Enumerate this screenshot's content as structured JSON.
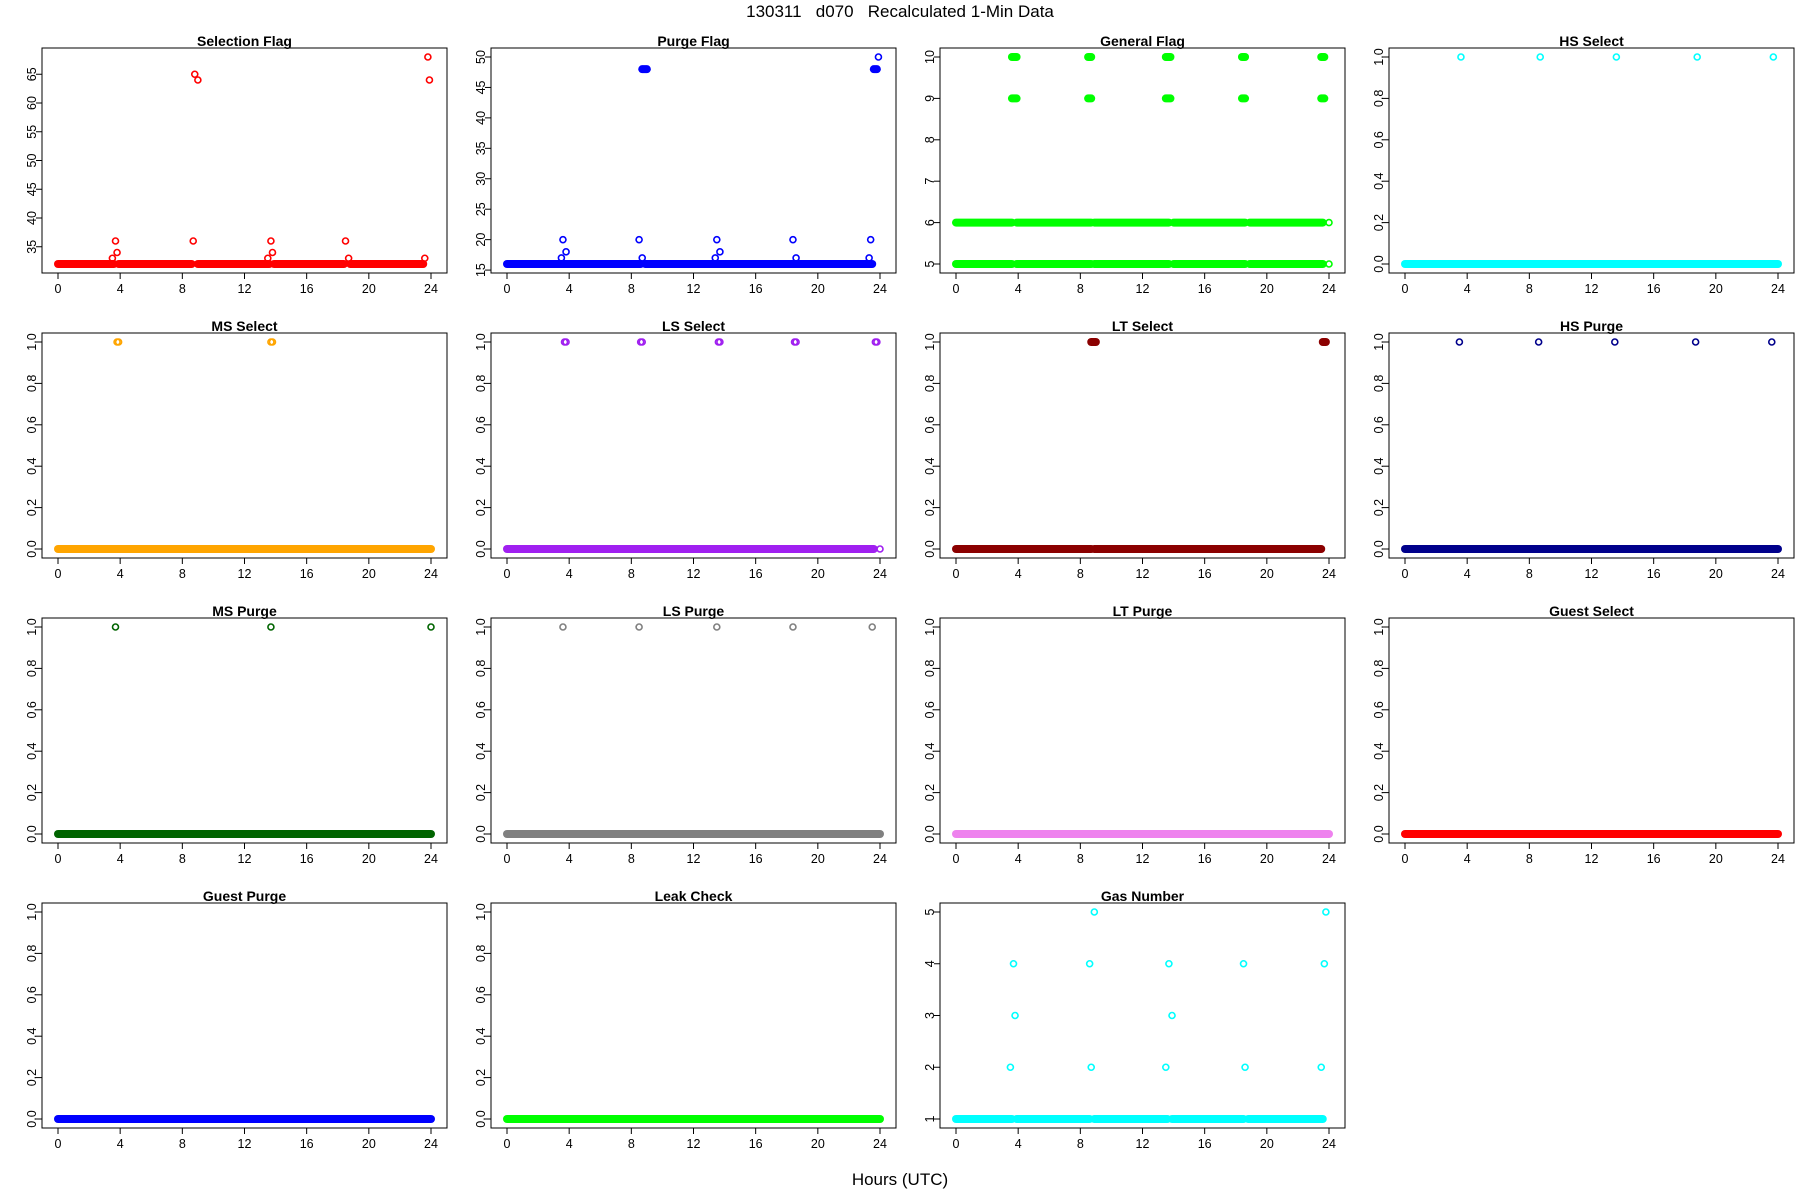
{
  "title": "130311   d070   Recalculated 1-Min Data",
  "xlabel": "Hours (UTC)",
  "chart_data": [
    {
      "type": "scatter",
      "title": "Selection Flag",
      "color": "#ff0000",
      "xlim": [
        0,
        24
      ],
      "ylim": [
        32,
        68
      ],
      "xticks": [
        0,
        4,
        8,
        12,
        16,
        20,
        24
      ],
      "yticks": [
        35,
        40,
        45,
        50,
        55,
        60,
        65
      ],
      "base": [
        {
          "y": 32,
          "from": 0,
          "to": 3.6
        },
        {
          "y": 32,
          "from": 3.9,
          "to": 8.6
        },
        {
          "y": 32,
          "from": 9.0,
          "to": 13.6
        },
        {
          "y": 32,
          "from": 13.9,
          "to": 18.4
        },
        {
          "y": 32,
          "from": 18.8,
          "to": 23.5
        }
      ],
      "points": [
        [
          3.5,
          33
        ],
        [
          3.7,
          36
        ],
        [
          3.8,
          34
        ],
        [
          8.7,
          36
        ],
        [
          8.8,
          65
        ],
        [
          9.0,
          64
        ],
        [
          13.5,
          33
        ],
        [
          13.7,
          36
        ],
        [
          13.8,
          34
        ],
        [
          18.5,
          36
        ],
        [
          18.7,
          33
        ],
        [
          23.6,
          33
        ],
        [
          23.8,
          68
        ],
        [
          23.9,
          64
        ]
      ]
    },
    {
      "type": "scatter",
      "title": "Purge Flag",
      "color": "#0000ff",
      "xlim": [
        0,
        24
      ],
      "ylim": [
        16,
        50
      ],
      "xticks": [
        0,
        4,
        8,
        12,
        16,
        20,
        24
      ],
      "yticks": [
        15,
        20,
        25,
        30,
        35,
        40,
        45,
        50
      ],
      "base": [
        {
          "y": 16,
          "from": 0,
          "to": 8.6
        },
        {
          "y": 16,
          "from": 8.9,
          "to": 23.5
        }
      ],
      "segments": [
        {
          "y": 48,
          "from": 8.7,
          "to": 9.0
        },
        {
          "y": 48,
          "from": 23.6,
          "to": 23.8
        }
      ],
      "points": [
        [
          3.5,
          17
        ],
        [
          3.6,
          20
        ],
        [
          3.8,
          18
        ],
        [
          8.5,
          20
        ],
        [
          8.7,
          17
        ],
        [
          13.4,
          17
        ],
        [
          13.5,
          20
        ],
        [
          13.7,
          18
        ],
        [
          18.4,
          20
        ],
        [
          18.6,
          17
        ],
        [
          23.3,
          17
        ],
        [
          23.4,
          20
        ],
        [
          23.9,
          50
        ]
      ]
    },
    {
      "type": "scatter",
      "title": "General Flag",
      "color": "#00ff00",
      "xlim": [
        0,
        24
      ],
      "ylim": [
        5,
        10
      ],
      "xticks": [
        0,
        4,
        8,
        12,
        16,
        20,
        24
      ],
      "yticks": [
        5,
        6,
        7,
        8,
        9,
        10
      ],
      "base": [
        {
          "y": 5,
          "from": 0,
          "to": 3.6
        },
        {
          "y": 5,
          "from": 3.9,
          "to": 8.7
        },
        {
          "y": 5,
          "from": 8.9,
          "to": 13.7
        },
        {
          "y": 5,
          "from": 14.0,
          "to": 18.6
        },
        {
          "y": 5,
          "from": 18.9,
          "to": 23.6
        },
        {
          "y": 6,
          "from": 0,
          "to": 3.6
        },
        {
          "y": 6,
          "from": 3.9,
          "to": 8.7
        },
        {
          "y": 6,
          "from": 8.9,
          "to": 13.7
        },
        {
          "y": 6,
          "from": 14.0,
          "to": 18.6
        },
        {
          "y": 6,
          "from": 18.9,
          "to": 23.6
        }
      ],
      "segments": [
        {
          "y": 10,
          "from": 3.6,
          "to": 3.9
        },
        {
          "y": 10,
          "from": 8.5,
          "to": 8.7
        },
        {
          "y": 10,
          "from": 13.5,
          "to": 13.8
        },
        {
          "y": 10,
          "from": 18.4,
          "to": 18.6
        },
        {
          "y": 10,
          "from": 23.5,
          "to": 23.7
        },
        {
          "y": 9,
          "from": 3.6,
          "to": 3.9
        },
        {
          "y": 9,
          "from": 8.5,
          "to": 8.7
        },
        {
          "y": 9,
          "from": 13.5,
          "to": 13.8
        },
        {
          "y": 9,
          "from": 18.4,
          "to": 18.6
        },
        {
          "y": 9,
          "from": 23.5,
          "to": 23.7
        }
      ],
      "points": [
        [
          24,
          6
        ],
        [
          24,
          5
        ]
      ]
    },
    {
      "type": "scatter",
      "title": "HS Select",
      "color": "#00ffff",
      "xlim": [
        0,
        24
      ],
      "ylim": [
        0,
        1
      ],
      "xticks": [
        0,
        4,
        8,
        12,
        16,
        20,
        24
      ],
      "yticks": [
        0.0,
        0.2,
        0.4,
        0.6,
        0.8,
        1.0
      ],
      "base": [
        {
          "y": 0,
          "from": 0,
          "to": 24
        }
      ],
      "points": [
        [
          3.6,
          1
        ],
        [
          8.7,
          1
        ],
        [
          13.6,
          1
        ],
        [
          18.8,
          1
        ],
        [
          23.7,
          1
        ]
      ]
    },
    {
      "type": "scatter",
      "title": "MS Select",
      "color": "#ffa500",
      "xlim": [
        0,
        24
      ],
      "ylim": [
        0,
        1
      ],
      "xticks": [
        0,
        4,
        8,
        12,
        16,
        20,
        24
      ],
      "yticks": [
        0.0,
        0.2,
        0.4,
        0.6,
        0.8,
        1.0
      ],
      "base": [
        {
          "y": 0,
          "from": 0,
          "to": 24
        }
      ],
      "points": [
        [
          3.8,
          1
        ],
        [
          3.9,
          1
        ],
        [
          13.7,
          1
        ],
        [
          13.8,
          1
        ]
      ]
    },
    {
      "type": "scatter",
      "title": "LS Select",
      "color": "#a020f0",
      "xlim": [
        0,
        24
      ],
      "ylim": [
        0,
        1
      ],
      "xticks": [
        0,
        4,
        8,
        12,
        16,
        20,
        24
      ],
      "yticks": [
        0.0,
        0.2,
        0.4,
        0.6,
        0.8,
        1.0
      ],
      "base": [
        {
          "y": 0,
          "from": 0,
          "to": 23.6
        }
      ],
      "points": [
        [
          3.7,
          1
        ],
        [
          3.8,
          1
        ],
        [
          8.6,
          1
        ],
        [
          8.7,
          1
        ],
        [
          13.6,
          1
        ],
        [
          13.7,
          1
        ],
        [
          18.5,
          1
        ],
        [
          18.6,
          1
        ],
        [
          23.7,
          1
        ],
        [
          23.8,
          1
        ],
        [
          24,
          0
        ]
      ]
    },
    {
      "type": "scatter",
      "title": "LT Select",
      "color": "#8b0000",
      "xlim": [
        0,
        24
      ],
      "ylim": [
        0,
        1
      ],
      "xticks": [
        0,
        4,
        8,
        12,
        16,
        20,
        24
      ],
      "yticks": [
        0.0,
        0.2,
        0.4,
        0.6,
        0.8,
        1.0
      ],
      "base": [
        {
          "y": 0,
          "from": 0,
          "to": 8.7
        },
        {
          "y": 0,
          "from": 8.9,
          "to": 23.5
        }
      ],
      "segments": [
        {
          "y": 1,
          "from": 8.7,
          "to": 9.0
        },
        {
          "y": 1,
          "from": 23.6,
          "to": 23.8
        }
      ],
      "points": []
    },
    {
      "type": "scatter",
      "title": "HS Purge",
      "color": "#00008b",
      "xlim": [
        0,
        24
      ],
      "ylim": [
        0,
        1
      ],
      "xticks": [
        0,
        4,
        8,
        12,
        16,
        20,
        24
      ],
      "yticks": [
        0.0,
        0.2,
        0.4,
        0.6,
        0.8,
        1.0
      ],
      "base": [
        {
          "y": 0,
          "from": 0,
          "to": 24
        }
      ],
      "points": [
        [
          3.5,
          1
        ],
        [
          8.6,
          1
        ],
        [
          13.5,
          1
        ],
        [
          18.7,
          1
        ],
        [
          23.6,
          1
        ]
      ]
    },
    {
      "type": "scatter",
      "title": "MS Purge",
      "color": "#006400",
      "xlim": [
        0,
        24
      ],
      "ylim": [
        0,
        1
      ],
      "xticks": [
        0,
        4,
        8,
        12,
        16,
        20,
        24
      ],
      "yticks": [
        0.0,
        0.2,
        0.4,
        0.6,
        0.8,
        1.0
      ],
      "base": [
        {
          "y": 0,
          "from": 0,
          "to": 24
        }
      ],
      "points": [
        [
          3.7,
          1
        ],
        [
          13.7,
          1
        ],
        [
          24,
          1
        ]
      ]
    },
    {
      "type": "scatter",
      "title": "LS Purge",
      "color": "#808080",
      "xlim": [
        0,
        24
      ],
      "ylim": [
        0,
        1
      ],
      "xticks": [
        0,
        4,
        8,
        12,
        16,
        20,
        24
      ],
      "yticks": [
        0.0,
        0.2,
        0.4,
        0.6,
        0.8,
        1.0
      ],
      "base": [
        {
          "y": 0,
          "from": 0,
          "to": 24
        }
      ],
      "points": [
        [
          3.6,
          1
        ],
        [
          8.5,
          1
        ],
        [
          13.5,
          1
        ],
        [
          18.4,
          1
        ],
        [
          23.5,
          1
        ]
      ]
    },
    {
      "type": "scatter",
      "title": "LT Purge",
      "color": "#ee82ee",
      "xlim": [
        0,
        24
      ],
      "ylim": [
        0,
        1
      ],
      "xticks": [
        0,
        4,
        8,
        12,
        16,
        20,
        24
      ],
      "yticks": [
        0.0,
        0.2,
        0.4,
        0.6,
        0.8,
        1.0
      ],
      "base": [
        {
          "y": 0,
          "from": 0,
          "to": 24
        }
      ],
      "points": []
    },
    {
      "type": "scatter",
      "title": "Guest Select",
      "color": "#ff0000",
      "xlim": [
        0,
        24
      ],
      "ylim": [
        0,
        1
      ],
      "xticks": [
        0,
        4,
        8,
        12,
        16,
        20,
        24
      ],
      "yticks": [
        0.0,
        0.2,
        0.4,
        0.6,
        0.8,
        1.0
      ],
      "base": [
        {
          "y": 0,
          "from": 0,
          "to": 24
        }
      ],
      "points": []
    },
    {
      "type": "scatter",
      "title": "Guest Purge",
      "color": "#0000ff",
      "xlim": [
        0,
        24
      ],
      "ylim": [
        0,
        1
      ],
      "xticks": [
        0,
        4,
        8,
        12,
        16,
        20,
        24
      ],
      "yticks": [
        0.0,
        0.2,
        0.4,
        0.6,
        0.8,
        1.0
      ],
      "base": [
        {
          "y": 0,
          "from": 0,
          "to": 24
        }
      ],
      "points": []
    },
    {
      "type": "scatter",
      "title": "Leak Check",
      "color": "#00ff00",
      "xlim": [
        0,
        24
      ],
      "ylim": [
        0,
        1
      ],
      "xticks": [
        0,
        4,
        8,
        12,
        16,
        20,
        24
      ],
      "yticks": [
        0.0,
        0.2,
        0.4,
        0.6,
        0.8,
        1.0
      ],
      "base": [
        {
          "y": 0,
          "from": 0,
          "to": 24
        }
      ],
      "points": []
    },
    {
      "type": "scatter",
      "title": "Gas Number",
      "color": "#00ffff",
      "xlim": [
        0,
        24
      ],
      "ylim": [
        1,
        5
      ],
      "xticks": [
        0,
        4,
        8,
        12,
        16,
        20,
        24
      ],
      "yticks": [
        1,
        2,
        3,
        4,
        5
      ],
      "base": [
        {
          "y": 1,
          "from": 0,
          "to": 3.6
        },
        {
          "y": 1,
          "from": 3.9,
          "to": 8.6
        },
        {
          "y": 1,
          "from": 8.9,
          "to": 13.6
        },
        {
          "y": 1,
          "from": 13.9,
          "to": 18.5
        },
        {
          "y": 1,
          "from": 18.8,
          "to": 23.6
        }
      ],
      "points": [
        [
          3.5,
          2
        ],
        [
          3.7,
          4
        ],
        [
          3.8,
          3
        ],
        [
          8.6,
          4
        ],
        [
          8.7,
          2
        ],
        [
          8.9,
          5
        ],
        [
          13.5,
          2
        ],
        [
          13.7,
          4
        ],
        [
          13.9,
          3
        ],
        [
          18.5,
          4
        ],
        [
          18.6,
          2
        ],
        [
          23.5,
          2
        ],
        [
          23.7,
          4
        ],
        [
          23.8,
          5
        ]
      ]
    }
  ]
}
